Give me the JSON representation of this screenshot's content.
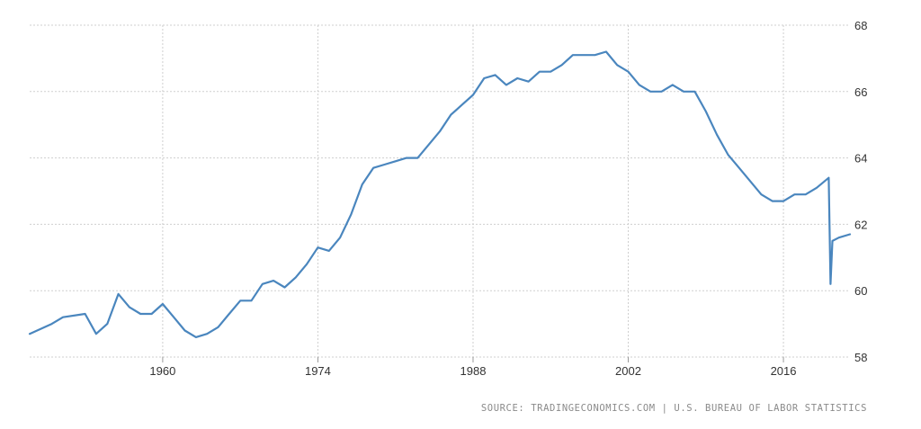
{
  "chart_data": {
    "type": "line",
    "title": "",
    "xlabel": "",
    "ylabel": "",
    "xlim": [
      1948,
      2022
    ],
    "ylim": [
      58,
      68
    ],
    "x_ticks": [
      "1960",
      "1974",
      "1988",
      "2002",
      "2016"
    ],
    "y_ticks": [
      "58",
      "60",
      "62",
      "64",
      "66",
      "68"
    ],
    "grid": true,
    "color": "#4a86be",
    "series": [
      {
        "x": [
          "1948",
          "1950",
          "1951",
          "1953",
          "1954",
          "1955",
          "1956",
          "1957",
          "1958",
          "1959",
          "1960",
          "1961",
          "1962",
          "1963",
          "1964",
          "1965",
          "1966",
          "1967",
          "1968",
          "1969",
          "1970",
          "1971",
          "1972",
          "1973",
          "1974",
          "1975",
          "1976",
          "1977",
          "1978",
          "1979",
          "1980",
          "1981",
          "1982",
          "1983",
          "1984",
          "1985",
          "1986",
          "1987",
          "1988",
          "1989",
          "1990",
          "1991",
          "1992",
          "1993",
          "1994",
          "1995",
          "1996",
          "1997",
          "1998",
          "1999",
          "2000",
          "2001",
          "2002",
          "2003",
          "2004",
          "2005",
          "2006",
          "2007",
          "2008",
          "2009",
          "2010",
          "2011",
          "2012",
          "2013",
          "2014",
          "2015",
          "2016",
          "2017",
          "2018",
          "2019",
          "2020-Feb",
          "2020-Apr",
          "2020-Jun",
          "2021",
          "2022"
        ],
        "values": [
          58.7,
          59.0,
          59.2,
          59.3,
          58.7,
          59.0,
          59.9,
          59.5,
          59.3,
          59.3,
          59.6,
          59.2,
          58.8,
          58.6,
          58.7,
          58.9,
          59.3,
          59.7,
          59.7,
          60.2,
          60.3,
          60.1,
          60.4,
          60.8,
          61.3,
          61.2,
          61.6,
          62.3,
          63.2,
          63.7,
          63.8,
          63.9,
          64.0,
          64.0,
          64.4,
          64.8,
          65.3,
          65.6,
          65.9,
          66.4,
          66.5,
          66.2,
          66.4,
          66.3,
          66.6,
          66.6,
          66.8,
          67.1,
          67.1,
          67.1,
          67.2,
          66.8,
          66.6,
          66.2,
          66.0,
          66.0,
          66.2,
          66.0,
          66.0,
          65.4,
          64.7,
          64.1,
          63.7,
          63.3,
          62.9,
          62.7,
          62.7,
          62.9,
          62.9,
          63.1,
          63.4,
          60.2,
          61.5,
          61.6,
          61.7
        ]
      }
    ]
  },
  "source_text": "SOURCE: TRADINGECONOMICS.COM | U.S. BUREAU OF LABOR STATISTICS"
}
